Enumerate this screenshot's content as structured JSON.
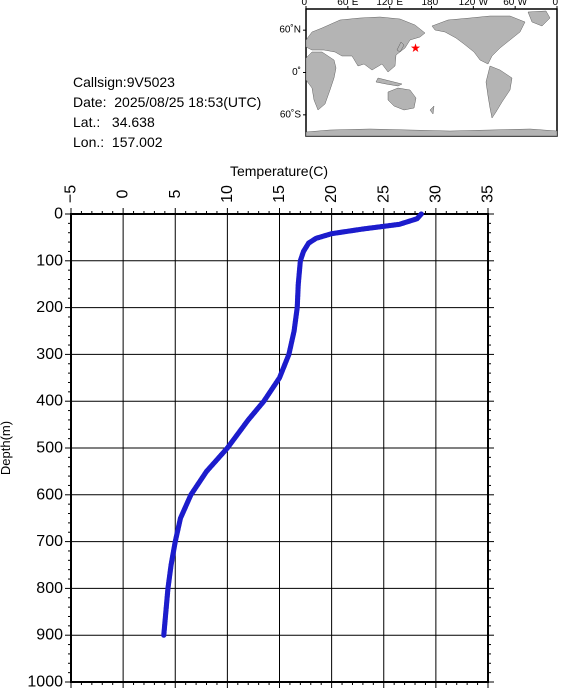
{
  "info": {
    "callsign": "Callsign:9V5023",
    "date": "Date:  2025/08/25 18:53(UTC)",
    "lat": "Lat.:   34.638",
    "lon": "Lon.:  157.002"
  },
  "map": {
    "lon_labels": [
      "0˚",
      "60˚E",
      "120˚E",
      "180˚",
      "120˚W",
      "60˚W",
      "0˚"
    ],
    "lat_labels": [
      "60˚N",
      "0˚",
      "60˚S"
    ],
    "marker": {
      "lon": 157.002,
      "lat": 34.638,
      "color": "#ff0000"
    },
    "land_color": "#b4b4b4",
    "ocean_color": "#ffffff"
  },
  "chart_data": {
    "type": "scatter",
    "xlabel": "Temperature(C)",
    "ylabel": "Depth(m)",
    "xlim": [
      -5,
      35
    ],
    "ylim": [
      0,
      1000
    ],
    "x_ticks": [
      "−5",
      "0",
      "5",
      "10",
      "15",
      "20",
      "25",
      "30",
      "35"
    ],
    "y_ticks": [
      "0",
      "100",
      "200",
      "300",
      "400",
      "500",
      "600",
      "700",
      "800",
      "900",
      "1000"
    ],
    "y_inverted": true,
    "grid": true,
    "color": "#1c1ccc",
    "profile": [
      {
        "t": 28.6,
        "d": 0
      },
      {
        "t": 28.2,
        "d": 10
      },
      {
        "t": 26.5,
        "d": 22
      },
      {
        "t": 23.0,
        "d": 32
      },
      {
        "t": 20.0,
        "d": 42
      },
      {
        "t": 18.5,
        "d": 52
      },
      {
        "t": 17.8,
        "d": 62
      },
      {
        "t": 17.3,
        "d": 80
      },
      {
        "t": 17.0,
        "d": 100
      },
      {
        "t": 16.8,
        "d": 150
      },
      {
        "t": 16.7,
        "d": 200
      },
      {
        "t": 16.4,
        "d": 250
      },
      {
        "t": 15.9,
        "d": 300
      },
      {
        "t": 15.0,
        "d": 350
      },
      {
        "t": 13.5,
        "d": 400
      },
      {
        "t": 12.0,
        "d": 440
      },
      {
        "t": 10.0,
        "d": 500
      },
      {
        "t": 8.0,
        "d": 550
      },
      {
        "t": 6.5,
        "d": 600
      },
      {
        "t": 5.5,
        "d": 650
      },
      {
        "t": 5.0,
        "d": 700
      },
      {
        "t": 4.6,
        "d": 750
      },
      {
        "t": 4.3,
        "d": 800
      },
      {
        "t": 4.1,
        "d": 850
      },
      {
        "t": 3.9,
        "d": 900
      }
    ]
  }
}
